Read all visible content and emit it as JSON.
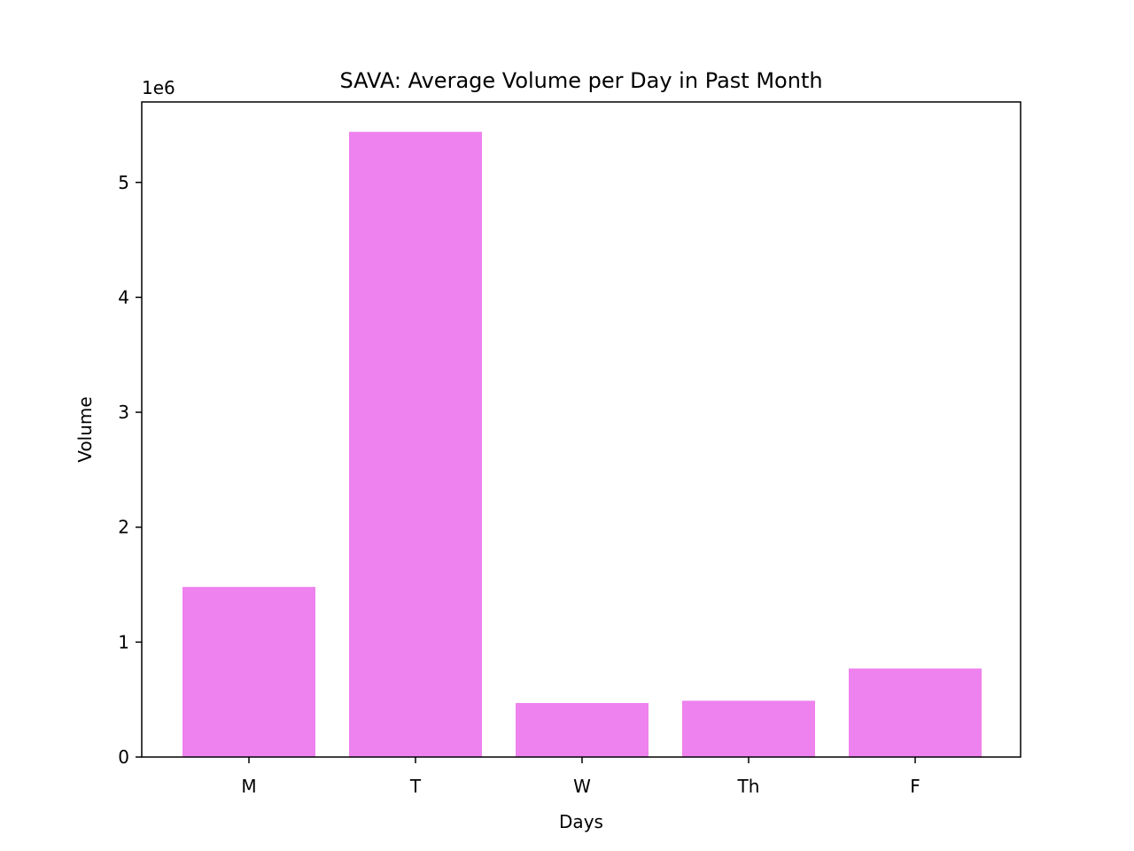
{
  "chart_data": {
    "type": "bar",
    "title": "SAVA: Average Volume per Day in Past Month",
    "xlabel": "Days",
    "ylabel": "Volume",
    "y_offset_label": "1e6",
    "y_multiplier": 1000000,
    "categories": [
      "M",
      "T",
      "W",
      "Th",
      "F"
    ],
    "values": [
      1480000,
      5440000,
      470000,
      490000,
      770000
    ],
    "ylim": [
      0,
      5700000
    ],
    "yticks": [
      0,
      1,
      2,
      3,
      4,
      5
    ],
    "bar_color": "#ee82ee",
    "grid": false,
    "legend": "none"
  }
}
